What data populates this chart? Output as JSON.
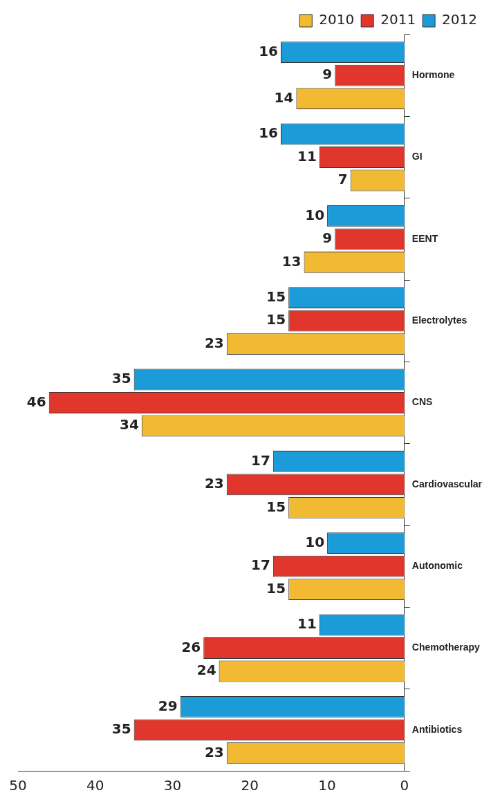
{
  "chart_data": {
    "type": "bar",
    "orientation": "horizontal",
    "categories": [
      "Hormone",
      "GI",
      "EENT",
      "Electrolytes",
      "CNS",
      "Cardiovascular",
      "Autonomic",
      "Chemotherapy",
      "Antibiotics"
    ],
    "series": [
      {
        "name": "2010",
        "color": "#f2b933",
        "values": [
          14,
          7,
          13,
          23,
          34,
          15,
          15,
          24,
          23
        ]
      },
      {
        "name": "2011",
        "color": "#e0362b",
        "values": [
          9,
          11,
          9,
          15,
          46,
          23,
          17,
          26,
          35
        ]
      },
      {
        "name": "2012",
        "color": "#1b9bd7",
        "values": [
          16,
          16,
          10,
          15,
          35,
          17,
          10,
          11,
          29
        ]
      }
    ],
    "xlim": [
      50,
      0
    ],
    "xticks": [
      0,
      10,
      20,
      30,
      40,
      50
    ],
    "grid": false,
    "legend": "top right",
    "data_labels": true
  }
}
